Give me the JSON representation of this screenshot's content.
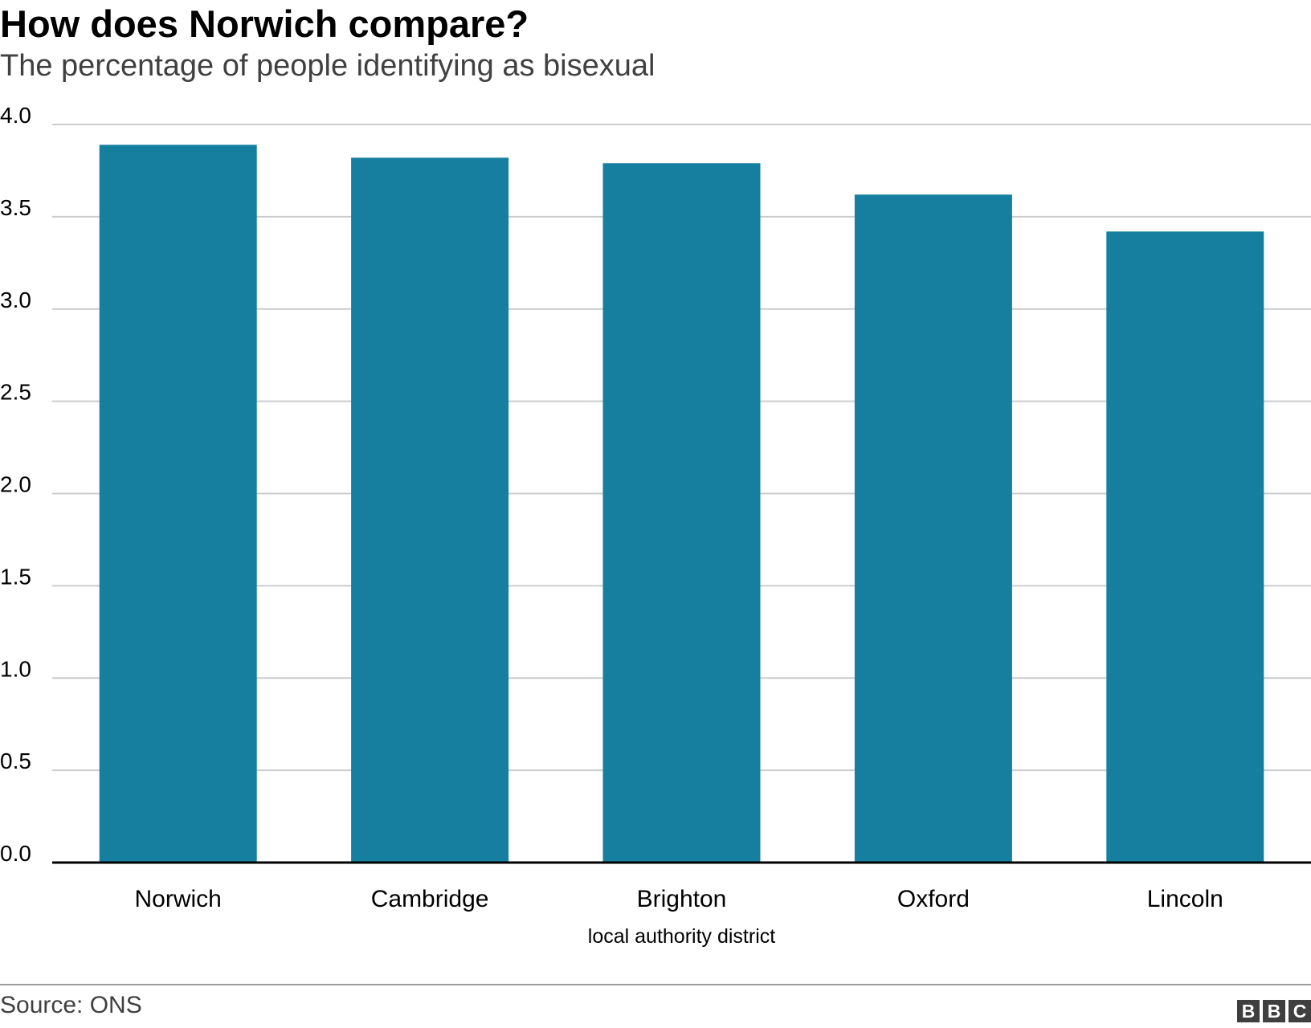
{
  "header": {
    "title": "How does Norwich compare?",
    "subtitle": "The percentage of people identifying as bisexual"
  },
  "footer": {
    "source": "Source: ONS",
    "logo_letters": [
      "B",
      "B",
      "C"
    ]
  },
  "chart_data": {
    "type": "bar",
    "categories": [
      "Norwich",
      "Cambridge",
      "Brighton",
      "Oxford",
      "Lincoln"
    ],
    "values": [
      3.89,
      3.82,
      3.79,
      3.62,
      3.42
    ],
    "title": "How does Norwich compare?",
    "subtitle": "The percentage of people identifying as bisexual",
    "xlabel": "local authority district",
    "ylabel": "",
    "ylim": [
      0,
      4
    ],
    "yticks": [
      "0.0",
      "0.5",
      "1.0",
      "1.5",
      "2.0",
      "2.5",
      "3.0",
      "3.5",
      "4.0"
    ],
    "grid": true,
    "legend": "none",
    "bar_color": "#167fa0",
    "grid_color": "#cccccc",
    "baseline_color": "#000000"
  }
}
